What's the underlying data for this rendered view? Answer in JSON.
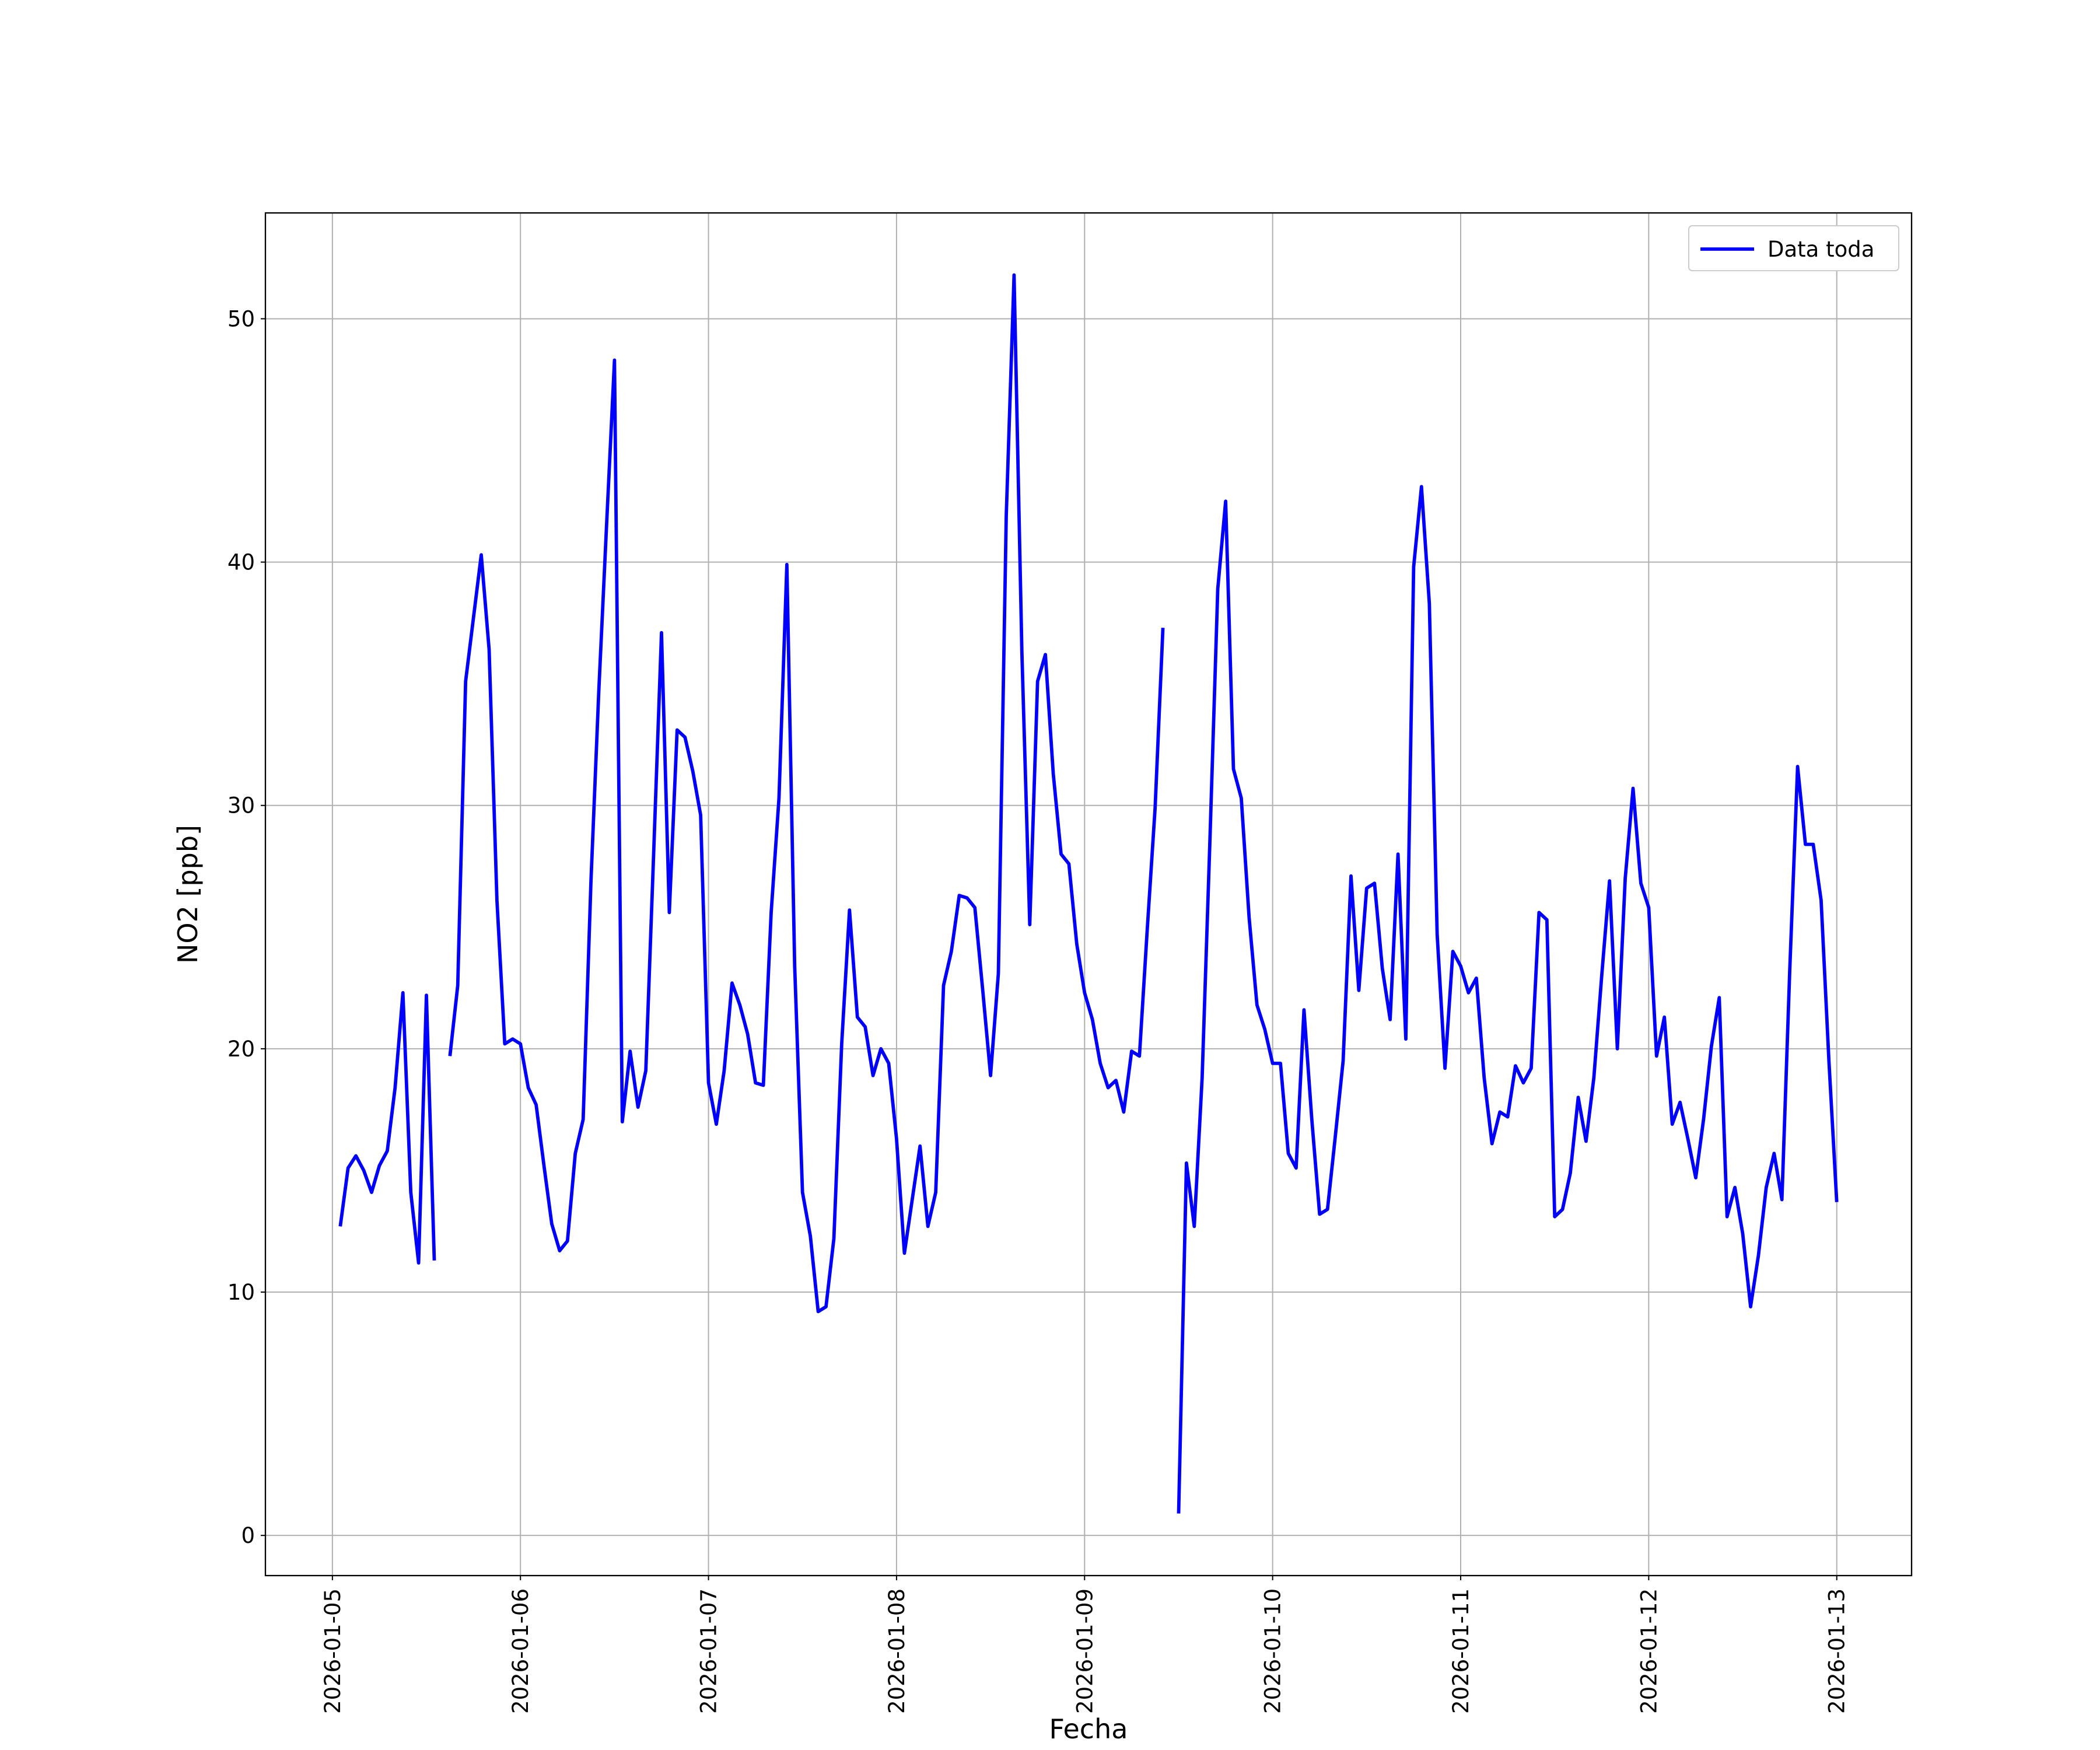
{
  "chart_data": {
    "type": "line",
    "xlabel": "Fecha",
    "ylabel": "NO2 [ppb]",
    "x": [
      "2026-01-05T01:00",
      "2026-01-05T02:00",
      "2026-01-05T03:00",
      "2026-01-05T04:00",
      "2026-01-05T05:00",
      "2026-01-05T06:00",
      "2026-01-05T07:00",
      "2026-01-05T08:00",
      "2026-01-05T09:00",
      "2026-01-05T10:00",
      "2026-01-05T11:00",
      "2026-01-05T12:00",
      "2026-01-05T13:00",
      "2026-01-05T14:00",
      "2026-01-05T15:00",
      "2026-01-05T16:00",
      "2026-01-05T17:00",
      "2026-01-05T18:00",
      "2026-01-05T19:00",
      "2026-01-05T20:00",
      "2026-01-05T21:00",
      "2026-01-05T22:00",
      "2026-01-05T23:00",
      "2026-01-06T00:00",
      "2026-01-06T01:00",
      "2026-01-06T02:00",
      "2026-01-06T03:00",
      "2026-01-06T04:00",
      "2026-01-06T05:00",
      "2026-01-06T06:00",
      "2026-01-06T07:00",
      "2026-01-06T08:00",
      "2026-01-06T09:00",
      "2026-01-06T10:00",
      "2026-01-06T11:00",
      "2026-01-06T12:00",
      "2026-01-06T13:00",
      "2026-01-06T14:00",
      "2026-01-06T15:00",
      "2026-01-06T16:00",
      "2026-01-06T17:00",
      "2026-01-06T18:00",
      "2026-01-06T19:00",
      "2026-01-06T20:00",
      "2026-01-06T21:00",
      "2026-01-06T22:00",
      "2026-01-06T23:00",
      "2026-01-07T00:00",
      "2026-01-07T01:00",
      "2026-01-07T02:00",
      "2026-01-07T03:00",
      "2026-01-07T04:00",
      "2026-01-07T05:00",
      "2026-01-07T06:00",
      "2026-01-07T07:00",
      "2026-01-07T08:00",
      "2026-01-07T09:00",
      "2026-01-07T10:00",
      "2026-01-07T11:00",
      "2026-01-07T12:00",
      "2026-01-07T13:00",
      "2026-01-07T14:00",
      "2026-01-07T15:00",
      "2026-01-07T16:00",
      "2026-01-07T17:00",
      "2026-01-07T18:00",
      "2026-01-07T19:00",
      "2026-01-07T20:00",
      "2026-01-07T21:00",
      "2026-01-07T22:00",
      "2026-01-07T23:00",
      "2026-01-08T00:00",
      "2026-01-08T01:00",
      "2026-01-08T02:00",
      "2026-01-08T03:00",
      "2026-01-08T04:00",
      "2026-01-08T05:00",
      "2026-01-08T06:00",
      "2026-01-08T07:00",
      "2026-01-08T08:00",
      "2026-01-08T09:00",
      "2026-01-08T10:00",
      "2026-01-08T11:00",
      "2026-01-08T12:00",
      "2026-01-08T13:00",
      "2026-01-08T14:00",
      "2026-01-08T15:00",
      "2026-01-08T16:00",
      "2026-01-08T17:00",
      "2026-01-08T18:00",
      "2026-01-08T19:00",
      "2026-01-08T20:00",
      "2026-01-08T21:00",
      "2026-01-08T22:00",
      "2026-01-08T23:00",
      "2026-01-09T00:00",
      "2026-01-09T01:00",
      "2026-01-09T02:00",
      "2026-01-09T03:00",
      "2026-01-09T04:00",
      "2026-01-09T05:00",
      "2026-01-09T06:00",
      "2026-01-09T07:00",
      "2026-01-09T08:00",
      "2026-01-09T09:00",
      "2026-01-09T10:00",
      "2026-01-09T11:00",
      "2026-01-09T12:00",
      "2026-01-09T13:00",
      "2026-01-09T14:00",
      "2026-01-09T15:00",
      "2026-01-09T16:00",
      "2026-01-09T17:00",
      "2026-01-09T18:00",
      "2026-01-09T19:00",
      "2026-01-09T20:00",
      "2026-01-09T21:00",
      "2026-01-09T22:00",
      "2026-01-09T23:00",
      "2026-01-10T00:00",
      "2026-01-10T01:00",
      "2026-01-10T02:00",
      "2026-01-10T03:00",
      "2026-01-10T04:00",
      "2026-01-10T05:00",
      "2026-01-10T06:00",
      "2026-01-10T07:00",
      "2026-01-10T08:00",
      "2026-01-10T09:00",
      "2026-01-10T10:00",
      "2026-01-10T11:00",
      "2026-01-10T12:00",
      "2026-01-10T13:00",
      "2026-01-10T14:00",
      "2026-01-10T15:00",
      "2026-01-10T16:00",
      "2026-01-10T17:00",
      "2026-01-10T18:00",
      "2026-01-10T19:00",
      "2026-01-10T20:00",
      "2026-01-10T21:00",
      "2026-01-10T22:00",
      "2026-01-10T23:00",
      "2026-01-11T00:00",
      "2026-01-11T01:00",
      "2026-01-11T02:00",
      "2026-01-11T03:00",
      "2026-01-11T04:00",
      "2026-01-11T05:00",
      "2026-01-11T06:00",
      "2026-01-11T07:00",
      "2026-01-11T08:00",
      "2026-01-11T09:00",
      "2026-01-11T10:00",
      "2026-01-11T11:00",
      "2026-01-11T12:00",
      "2026-01-11T13:00",
      "2026-01-11T14:00",
      "2026-01-11T15:00",
      "2026-01-11T16:00",
      "2026-01-11T17:00",
      "2026-01-11T18:00",
      "2026-01-11T19:00",
      "2026-01-11T20:00",
      "2026-01-11T21:00",
      "2026-01-11T22:00",
      "2026-01-11T23:00",
      "2026-01-12T00:00",
      "2026-01-12T01:00",
      "2026-01-12T02:00",
      "2026-01-12T03:00",
      "2026-01-12T04:00",
      "2026-01-12T05:00",
      "2026-01-12T06:00",
      "2026-01-12T07:00",
      "2026-01-12T08:00",
      "2026-01-12T09:00",
      "2026-01-12T10:00",
      "2026-01-12T11:00",
      "2026-01-12T12:00",
      "2026-01-12T13:00",
      "2026-01-12T14:00",
      "2026-01-12T15:00",
      "2026-01-12T16:00",
      "2026-01-12T17:00",
      "2026-01-12T18:00",
      "2026-01-12T19:00",
      "2026-01-12T20:00",
      "2026-01-12T21:00",
      "2026-01-12T22:00",
      "2026-01-12T23:00",
      "2026-01-13T00:00"
    ],
    "series": [
      {
        "name": "Data toda",
        "color": "#0000ff",
        "values": [
          12.7,
          15.1,
          15.6,
          15.0,
          14.1,
          15.2,
          15.8,
          18.4,
          22.3,
          14.1,
          11.2,
          22.2,
          11.3,
          null,
          19.7,
          22.6,
          35.1,
          37.7,
          40.3,
          36.4,
          26.1,
          20.2,
          20.4,
          20.2,
          18.4,
          17.7,
          15.2,
          12.8,
          11.7,
          12.1,
          15.7,
          17.1,
          26.9,
          34.7,
          41.6,
          48.3,
          17.0,
          19.9,
          17.6,
          19.1,
          28.0,
          37.1,
          25.6,
          33.1,
          32.8,
          31.4,
          29.6,
          18.6,
          16.9,
          19.1,
          22.7,
          21.8,
          20.6,
          18.6,
          18.5,
          25.6,
          30.3,
          39.9,
          23.4,
          14.1,
          12.3,
          9.2,
          9.4,
          12.2,
          20.2,
          25.7,
          21.3,
          20.9,
          18.9,
          20.0,
          19.4,
          16.3,
          11.6,
          13.8,
          16.0,
          12.7,
          14.1,
          22.6,
          24.0,
          26.3,
          26.2,
          25.8,
          22.4,
          18.9,
          23.1,
          41.9,
          51.8,
          36.3,
          25.1,
          35.1,
          36.2,
          31.3,
          28.0,
          27.6,
          24.3,
          22.3,
          21.2,
          19.4,
          18.4,
          18.7,
          17.4,
          19.9,
          19.7,
          24.9,
          29.9,
          37.3,
          null,
          0.9,
          15.3,
          12.7,
          18.8,
          28.6,
          38.9,
          42.5,
          31.5,
          30.3,
          25.4,
          21.8,
          20.8,
          19.4,
          19.4,
          15.7,
          15.1,
          21.6,
          17.1,
          13.2,
          13.4,
          16.4,
          19.5,
          27.1,
          22.4,
          26.6,
          26.8,
          23.3,
          21.2,
          28.0,
          20.4,
          39.8,
          43.1,
          38.3,
          24.7,
          19.2,
          24.0,
          23.4,
          22.3,
          22.9,
          18.8,
          16.1,
          17.4,
          17.2,
          19.3,
          18.6,
          19.2,
          25.6,
          25.3,
          13.1,
          13.4,
          14.9,
          18.0,
          16.2,
          18.8,
          23.0,
          26.9,
          20.0,
          27.0,
          30.7,
          26.8,
          25.8,
          19.7,
          21.3,
          16.9,
          17.8,
          16.3,
          14.7,
          17.1,
          20.1,
          22.1,
          13.1,
          14.3,
          12.4,
          9.4,
          11.5,
          14.3,
          15.7,
          13.8,
          23.2,
          31.6,
          28.4,
          28.4,
          26.1,
          19.5,
          13.7
        ]
      }
    ],
    "xlim": [
      "2026-01-04T15:27",
      "2026-01-13T09:33"
    ],
    "xticks": [
      "2026-01-05",
      "2026-01-06",
      "2026-01-07",
      "2026-01-08",
      "2026-01-09",
      "2026-01-10",
      "2026-01-11",
      "2026-01-12",
      "2026-01-13"
    ],
    "ylim": [
      -1.65,
      54.35
    ],
    "yticks": [
      0,
      10,
      20,
      30,
      40,
      50
    ],
    "grid": true,
    "legend": "upper right"
  }
}
